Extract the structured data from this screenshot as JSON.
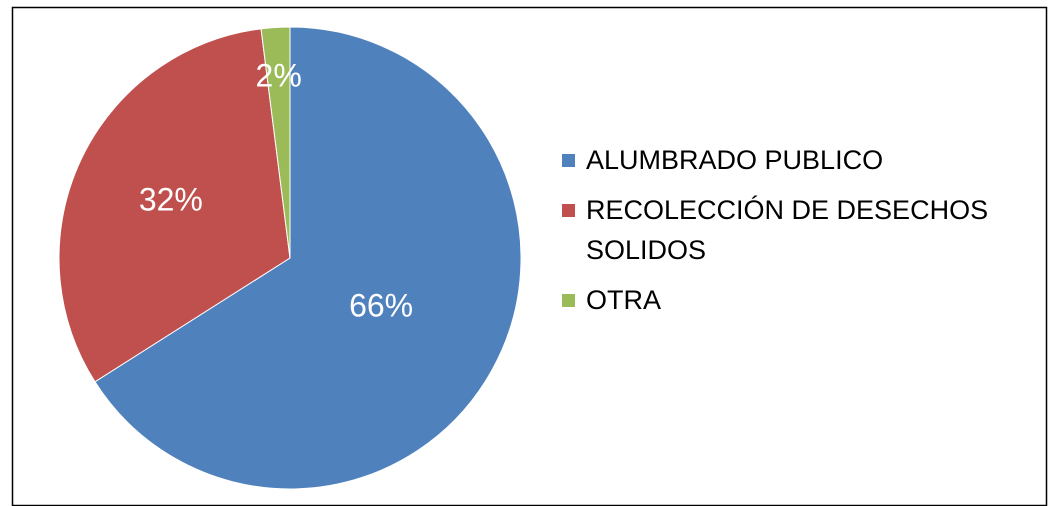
{
  "chart_data": {
    "type": "pie",
    "categories": [
      "ALUMBRADO PUBLICO",
      "RECOLECCIÓN DE DESECHOS SOLIDOS",
      "OTRA"
    ],
    "values": [
      66,
      32,
      2
    ],
    "value_labels": [
      "66%",
      "32%",
      "2%"
    ],
    "colors": [
      "#4f81bd",
      "#c0504d",
      "#9bbb59"
    ],
    "legend": "right"
  }
}
